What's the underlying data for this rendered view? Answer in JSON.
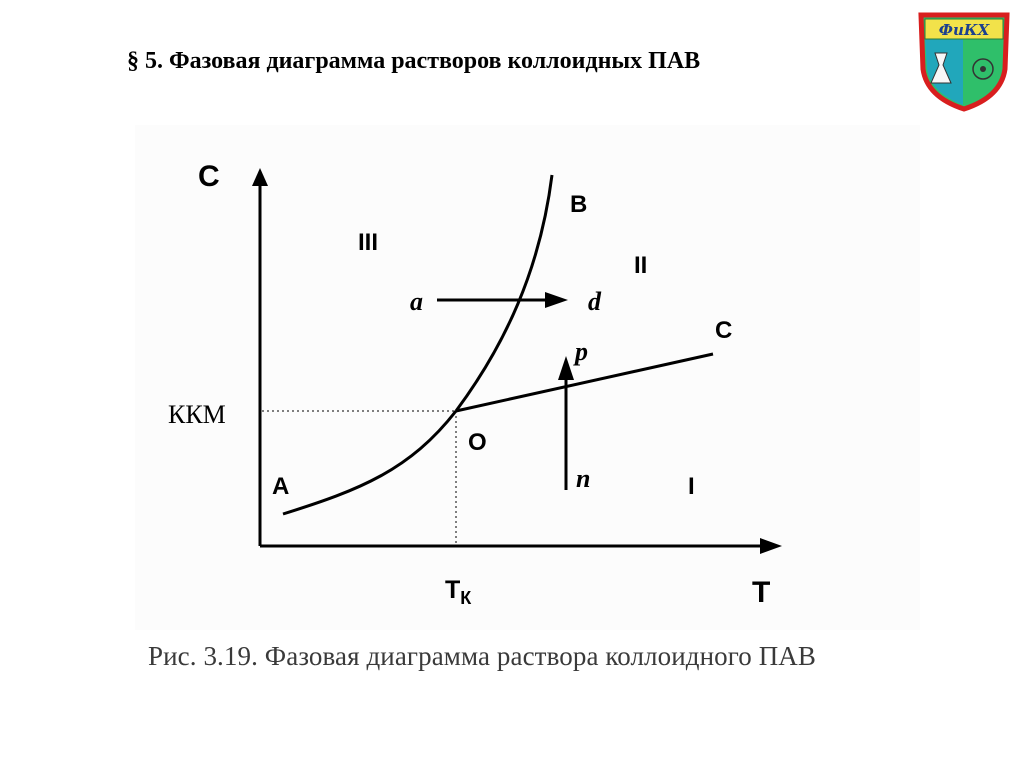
{
  "slide": {
    "title": "§ 5. Фазовая диаграмма растворов коллоидных ПАВ",
    "caption": "Рис. 3.19. Фазовая диаграмма раствора коллоидного ПАВ"
  },
  "logo": {
    "text": "ФиКХ",
    "colors": {
      "border": "#d81e1e",
      "fill": "#2fbf6a",
      "accent": "#f2e24a"
    }
  },
  "diagram": {
    "axis_y_label": "С",
    "axis_x_label": "Т",
    "kkm_label": "ККМ",
    "tk_main": "Т",
    "tk_sub": "К",
    "point_A": "А",
    "point_B": "В",
    "point_C": "С",
    "point_O": "О",
    "region_I": "I",
    "region_II": "II",
    "region_III": "III",
    "path_a": "a",
    "path_d": "d",
    "path_p": "p",
    "path_n": "n"
  }
}
